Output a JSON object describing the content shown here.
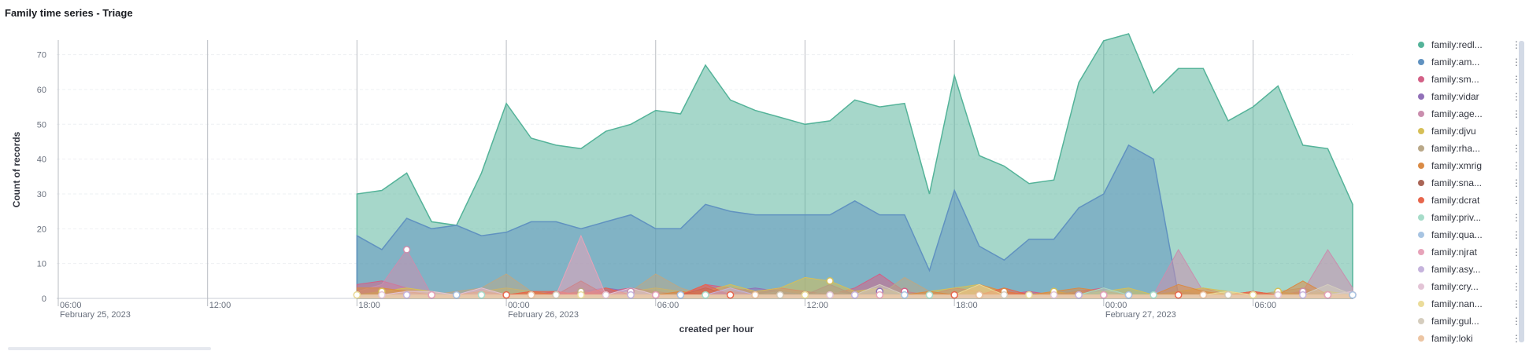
{
  "panel": {
    "title": "Family time series - Triage"
  },
  "chart_data": {
    "type": "area",
    "title": "Family time series - Triage",
    "xlabel": "created per hour",
    "ylabel": "Count of records",
    "ylim": [
      0,
      76
    ],
    "yticks": [
      0,
      10,
      20,
      30,
      40,
      50,
      60,
      70
    ],
    "x_start": "2023-02-25 06:00",
    "x_end": "2023-02-27 11:00",
    "x_step_hours": 1,
    "x_ticks": [
      {
        "time": "06:00",
        "date": "February 25, 2023"
      },
      {
        "time": "12:00",
        "date": ""
      },
      {
        "time": "18:00",
        "date": ""
      },
      {
        "time": "00:00",
        "date": "February 26, 2023"
      },
      {
        "time": "06:00",
        "date": ""
      },
      {
        "time": "12:00",
        "date": ""
      },
      {
        "time": "18:00",
        "date": ""
      },
      {
        "time": "00:00",
        "date": "February 27, 2023"
      },
      {
        "time": "06:00",
        "date": ""
      }
    ],
    "grid": true,
    "legend_position": "right",
    "series": [
      {
        "name": "family:redl...",
        "color": "#54b399",
        "values": [
          null,
          null,
          null,
          null,
          null,
          null,
          null,
          null,
          null,
          null,
          null,
          null,
          30,
          31,
          36,
          22,
          21,
          36,
          56,
          46,
          44,
          43,
          48,
          50,
          54,
          53,
          67,
          57,
          54,
          52,
          50,
          51,
          57,
          55,
          56,
          30,
          64,
          41,
          38,
          33,
          34,
          62,
          74,
          76,
          59,
          66,
          66,
          51,
          55,
          61,
          44,
          43,
          27
        ]
      },
      {
        "name": "family:am...",
        "color": "#6092c0",
        "values": [
          null,
          null,
          null,
          null,
          null,
          null,
          null,
          null,
          null,
          null,
          null,
          null,
          18,
          14,
          23,
          20,
          21,
          18,
          19,
          22,
          22,
          20,
          22,
          24,
          20,
          20,
          27,
          25,
          24,
          24,
          24,
          24,
          28,
          24,
          24,
          8,
          31,
          15,
          11,
          17,
          17,
          26,
          30,
          44,
          40,
          1,
          1,
          1,
          1,
          1,
          1,
          1,
          1
        ]
      },
      {
        "name": "family:sm...",
        "color": "#d36086",
        "values": [
          null,
          null,
          null,
          null,
          null,
          null,
          null,
          null,
          null,
          null,
          null,
          null,
          4,
          5,
          3,
          1,
          1,
          3,
          1,
          1,
          2,
          1,
          2,
          3,
          2,
          1,
          4,
          3,
          2,
          3,
          2,
          1,
          3,
          7,
          2,
          1,
          3,
          2,
          1,
          2,
          1,
          2,
          3,
          1,
          1,
          2,
          3,
          1,
          2,
          1,
          2,
          1,
          1
        ]
      },
      {
        "name": "family:vidar",
        "color": "#9170b8",
        "values": [
          null,
          null,
          null,
          null,
          null,
          null,
          null,
          null,
          null,
          null,
          null,
          null,
          1,
          2,
          1,
          1,
          0,
          2,
          1,
          1,
          1,
          2,
          3,
          2,
          1,
          2,
          1,
          2,
          3,
          2,
          1,
          4,
          1,
          2,
          1,
          1,
          1,
          2,
          1,
          1,
          1,
          2,
          1,
          1,
          1,
          2,
          1,
          0,
          1,
          1,
          1,
          1,
          1
        ]
      },
      {
        "name": "family:age...",
        "color": "#ca8eae",
        "values": [
          null,
          null,
          null,
          null,
          null,
          null,
          null,
          null,
          null,
          null,
          null,
          null,
          2,
          4,
          14,
          1,
          1,
          2,
          1,
          2,
          1,
          1,
          1,
          2,
          1,
          1,
          1,
          2,
          1,
          1,
          1,
          1,
          1,
          1,
          1,
          1,
          1,
          1,
          1,
          1,
          1,
          1,
          2,
          1,
          1,
          14,
          2,
          1,
          1,
          1,
          2,
          14,
          3
        ]
      },
      {
        "name": "family:djvu",
        "color": "#d6bf57",
        "values": [
          null,
          null,
          null,
          null,
          null,
          null,
          null,
          null,
          null,
          null,
          null,
          null,
          1,
          2,
          3,
          2,
          1,
          2,
          3,
          2,
          1,
          2,
          1,
          2,
          3,
          2,
          2,
          4,
          2,
          3,
          6,
          5,
          2,
          3,
          1,
          2,
          3,
          4,
          2,
          1,
          2,
          1,
          2,
          3,
          1,
          2,
          3,
          2,
          1,
          2,
          1,
          2,
          1
        ]
      },
      {
        "name": "family:rha...",
        "color": "#b9a888",
        "values": [
          null,
          null,
          null,
          null,
          null,
          null,
          null,
          null,
          null,
          null,
          null,
          null,
          1,
          2,
          1,
          1,
          2,
          3,
          7,
          2,
          1,
          2,
          1,
          2,
          7,
          3,
          1,
          2,
          1,
          2,
          1,
          2,
          1,
          1,
          6,
          2,
          1,
          2,
          1,
          1,
          1,
          2,
          1,
          1,
          1,
          2,
          1,
          1,
          1,
          2,
          3,
          1,
          1
        ]
      },
      {
        "name": "family:xmrig",
        "color": "#da8b45",
        "values": [
          null,
          null,
          null,
          null,
          null,
          null,
          null,
          null,
          null,
          null,
          null,
          null,
          3,
          3,
          2,
          1,
          1,
          2,
          1,
          2,
          1,
          2,
          1,
          1,
          1,
          2,
          1,
          2,
          1,
          1,
          1,
          1,
          1,
          1,
          1,
          2,
          1,
          4,
          2,
          1,
          2,
          3,
          2,
          1,
          1,
          4,
          2,
          1,
          2,
          1,
          5,
          1,
          1
        ]
      },
      {
        "name": "family:sna...",
        "color": "#aa6556",
        "values": [
          null,
          null,
          null,
          null,
          null,
          null,
          null,
          null,
          null,
          null,
          null,
          null,
          1,
          1,
          1,
          1,
          1,
          1,
          1,
          1,
          1,
          5,
          1,
          1,
          1,
          1,
          3,
          1,
          1,
          1,
          1,
          1,
          1,
          1,
          1,
          1,
          1,
          1,
          1,
          1,
          1,
          1,
          1,
          1,
          1,
          1,
          1,
          1,
          1,
          1,
          1,
          1,
          1
        ]
      },
      {
        "name": "family:dcrat",
        "color": "#e7664c",
        "values": [
          null,
          null,
          null,
          null,
          null,
          null,
          null,
          null,
          null,
          null,
          null,
          null,
          1,
          1,
          1,
          1,
          1,
          1,
          1,
          2,
          2,
          1,
          3,
          1,
          1,
          1,
          4,
          1,
          1,
          1,
          1,
          1,
          1,
          1,
          1,
          1,
          1,
          1,
          3,
          1,
          1,
          1,
          1,
          1,
          1,
          1,
          1,
          1,
          2,
          1,
          1,
          1,
          1
        ]
      },
      {
        "name": "family:priv...",
        "color": "#a6dcc9",
        "values": [
          null,
          null,
          null,
          null,
          null,
          null,
          null,
          null,
          null,
          null,
          null,
          null,
          1,
          1,
          1,
          1,
          1,
          1,
          1,
          1,
          1,
          1,
          1,
          1,
          1,
          1,
          1,
          1,
          1,
          1,
          1,
          1,
          1,
          1,
          1,
          1,
          1,
          1,
          1,
          1,
          1,
          1,
          3,
          1,
          1,
          1,
          1,
          1,
          1,
          1,
          1,
          1,
          1
        ]
      },
      {
        "name": "family:qua...",
        "color": "#a7c4e2",
        "values": [
          null,
          null,
          null,
          null,
          null,
          null,
          null,
          null,
          null,
          null,
          null,
          null,
          1,
          1,
          1,
          1,
          1,
          1,
          1,
          1,
          1,
          1,
          1,
          1,
          1,
          1,
          1,
          1,
          1,
          1,
          1,
          1,
          1,
          1,
          1,
          1,
          1,
          1,
          1,
          1,
          1,
          1,
          1,
          1,
          1,
          1,
          1,
          1,
          1,
          1,
          1,
          1,
          1
        ]
      },
      {
        "name": "family:njrat",
        "color": "#e7a3b9",
        "values": [
          null,
          null,
          null,
          null,
          null,
          null,
          null,
          null,
          null,
          null,
          null,
          null,
          1,
          1,
          1,
          1,
          1,
          1,
          1,
          1,
          1,
          18,
          1,
          1,
          1,
          1,
          1,
          1,
          1,
          1,
          1,
          1,
          1,
          1,
          1,
          1,
          1,
          1,
          1,
          1,
          1,
          1,
          1,
          1,
          1,
          1,
          1,
          1,
          1,
          1,
          1,
          1,
          1
        ]
      },
      {
        "name": "family:asy...",
        "color": "#c5b3dc",
        "values": [
          null,
          null,
          null,
          null,
          null,
          null,
          null,
          null,
          null,
          null,
          null,
          null,
          1,
          1,
          1,
          1,
          1,
          1,
          1,
          1,
          1,
          1,
          1,
          1,
          1,
          1,
          1,
          3,
          1,
          1,
          1,
          1,
          1,
          1,
          1,
          1,
          1,
          1,
          1,
          1,
          1,
          1,
          1,
          1,
          1,
          1,
          1,
          1,
          1,
          1,
          1,
          1,
          1
        ]
      },
      {
        "name": "family:cry...",
        "color": "#e3c4d6",
        "values": [
          null,
          null,
          null,
          null,
          null,
          null,
          null,
          null,
          null,
          null,
          null,
          null,
          1,
          1,
          2,
          2,
          1,
          3,
          1,
          1,
          1,
          1,
          1,
          3,
          1,
          1,
          1,
          1,
          1,
          1,
          1,
          1,
          1,
          1,
          1,
          1,
          1,
          1,
          1,
          1,
          1,
          1,
          1,
          1,
          1,
          1,
          1,
          1,
          1,
          1,
          1,
          1,
          2
        ]
      },
      {
        "name": "family:nan...",
        "color": "#ebdc9a",
        "values": [
          null,
          null,
          null,
          null,
          null,
          null,
          null,
          null,
          null,
          null,
          null,
          null,
          1,
          1,
          1,
          1,
          1,
          1,
          1,
          1,
          1,
          1,
          1,
          1,
          1,
          1,
          1,
          1,
          1,
          1,
          1,
          1,
          1,
          1,
          1,
          1,
          1,
          4,
          1,
          1,
          1,
          1,
          1,
          1,
          1,
          1,
          1,
          2,
          1,
          1,
          1,
          1,
          1
        ]
      },
      {
        "name": "family:gul...",
        "color": "#d5cdbe",
        "values": [
          null,
          null,
          null,
          null,
          null,
          null,
          null,
          null,
          null,
          null,
          null,
          null,
          1,
          1,
          1,
          1,
          1,
          1,
          1,
          1,
          1,
          1,
          1,
          1,
          1,
          1,
          1,
          1,
          1,
          1,
          1,
          1,
          1,
          4,
          1,
          1,
          1,
          1,
          1,
          1,
          1,
          1,
          1,
          1,
          1,
          1,
          1,
          1,
          1,
          1,
          1,
          4,
          1
        ]
      },
      {
        "name": "family:loki",
        "color": "#ecc5a3",
        "values": [
          null,
          null,
          null,
          null,
          null,
          null,
          null,
          null,
          null,
          null,
          null,
          null,
          1,
          1,
          1,
          1,
          1,
          1,
          1,
          1,
          1,
          1,
          1,
          1,
          1,
          1,
          1,
          1,
          1,
          1,
          1,
          1,
          1,
          1,
          1,
          1,
          1,
          1,
          1,
          1,
          1,
          1,
          1,
          1,
          1,
          1,
          1,
          1,
          1,
          1,
          1,
          1,
          1
        ]
      }
    ]
  },
  "legend": {
    "items": [
      {
        "label": "family:redl...",
        "color": "#54b399"
      },
      {
        "label": "family:am...",
        "color": "#6092c0"
      },
      {
        "label": "family:sm...",
        "color": "#d36086"
      },
      {
        "label": "family:vidar",
        "color": "#9170b8"
      },
      {
        "label": "family:age...",
        "color": "#ca8eae"
      },
      {
        "label": "family:djvu",
        "color": "#d6bf57"
      },
      {
        "label": "family:rha...",
        "color": "#b9a888"
      },
      {
        "label": "family:xmrig",
        "color": "#da8b45"
      },
      {
        "label": "family:sna...",
        "color": "#aa6556"
      },
      {
        "label": "family:dcrat",
        "color": "#e7664c"
      },
      {
        "label": "family:priv...",
        "color": "#a6dcc9"
      },
      {
        "label": "family:qua...",
        "color": "#a7c4e2"
      },
      {
        "label": "family:njrat",
        "color": "#e7a3b9"
      },
      {
        "label": "family:asy...",
        "color": "#c5b3dc"
      },
      {
        "label": "family:cry...",
        "color": "#e3c4d6"
      },
      {
        "label": "family:nan...",
        "color": "#ebdc9a"
      },
      {
        "label": "family:gul...",
        "color": "#d5cdbe"
      },
      {
        "label": "family:loki",
        "color": "#ecc5a3"
      }
    ]
  }
}
